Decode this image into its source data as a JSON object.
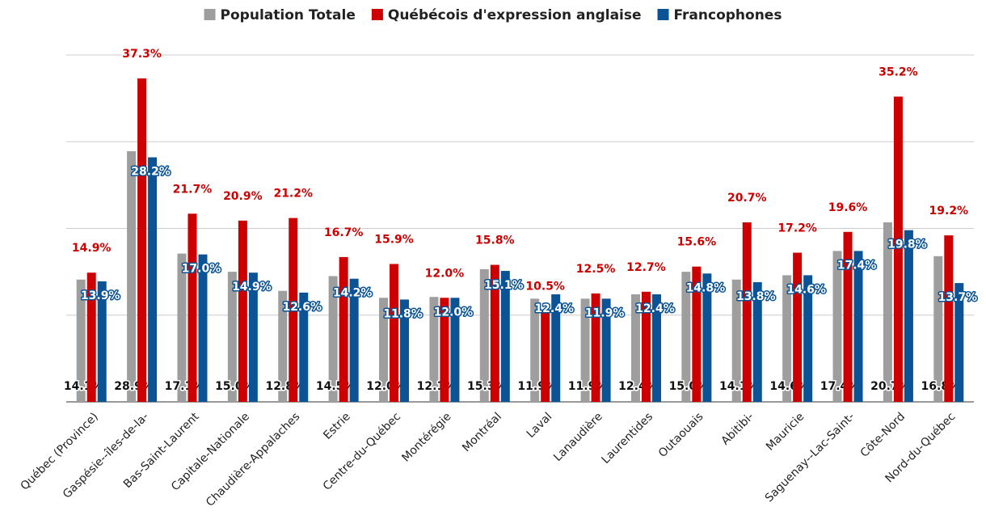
{
  "chart_data": {
    "type": "bar",
    "categories": [
      "Québec (Province)",
      "Gaspésie--îles-de-la-",
      "Bas-Saint-Laurent",
      "Capitale-Nationale",
      "Chaudière-Appalaches",
      "Estrie",
      "Centre-du-Québec",
      "Montérégie",
      "Montréal",
      "Laval",
      "Lanaudière",
      "Laurentides",
      "Outaouais",
      "Abitibi-",
      "Mauricie",
      "Saguenay--Lac-Saint-",
      "Côte-Nord",
      "Nord-du-Québec"
    ],
    "series": [
      {
        "name": "Population Totale",
        "color": "#9e9e9e",
        "values": [
          14.1,
          28.9,
          17.1,
          15.0,
          12.8,
          14.5,
          12.0,
          12.1,
          15.3,
          11.9,
          11.9,
          12.4,
          15.0,
          14.1,
          14.6,
          17.4,
          20.7,
          16.8
        ],
        "value_labels": [
          "14.1%",
          "28.9%",
          "17.1%",
          "15.0%",
          "12.8%",
          "14.5%",
          "12.0%",
          "12.1%",
          "15.3%",
          "11.9%",
          "11.9%",
          "12.4%",
          "15.0%",
          "14.1%",
          "14.6%",
          "17.4%",
          "20.7%",
          "16.8%"
        ]
      },
      {
        "name": "Québécois d'expression anglaise",
        "color": "#cc0000",
        "values": [
          14.9,
          37.3,
          21.7,
          20.9,
          21.2,
          16.7,
          15.9,
          12.0,
          15.8,
          10.5,
          12.5,
          12.7,
          15.6,
          20.7,
          17.2,
          19.6,
          35.2,
          19.2
        ],
        "value_labels": [
          "14.9%",
          "37.3%",
          "21.7%",
          "20.9%",
          "21.2%",
          "16.7%",
          "15.9%",
          "12.0%",
          "15.8%",
          "10.5%",
          "12.5%",
          "12.7%",
          "15.6%",
          "20.7%",
          "17.2%",
          "19.6%",
          "35.2%",
          "19.2%"
        ]
      },
      {
        "name": "Francophones",
        "color": "#0b5394",
        "values": [
          13.9,
          28.2,
          17.0,
          14.9,
          12.6,
          14.2,
          11.8,
          12.0,
          15.1,
          12.4,
          11.9,
          12.4,
          14.8,
          13.8,
          14.6,
          17.4,
          19.8,
          13.7
        ],
        "value_labels": [
          "13.9%",
          "28.2%",
          "17.0%",
          "14.9%",
          "12.6%",
          "14.2%",
          "11.8%",
          "12.0%",
          "15.1%",
          "12.4%",
          "11.9%",
          "12.4%",
          "14.8%",
          "13.8%",
          "14.6%",
          "17.4%",
          "19.8%",
          "13.7%"
        ]
      }
    ],
    "ylim": [
      0,
      40
    ],
    "yticks": [
      0,
      10,
      20,
      30,
      40
    ],
    "grid": true
  }
}
